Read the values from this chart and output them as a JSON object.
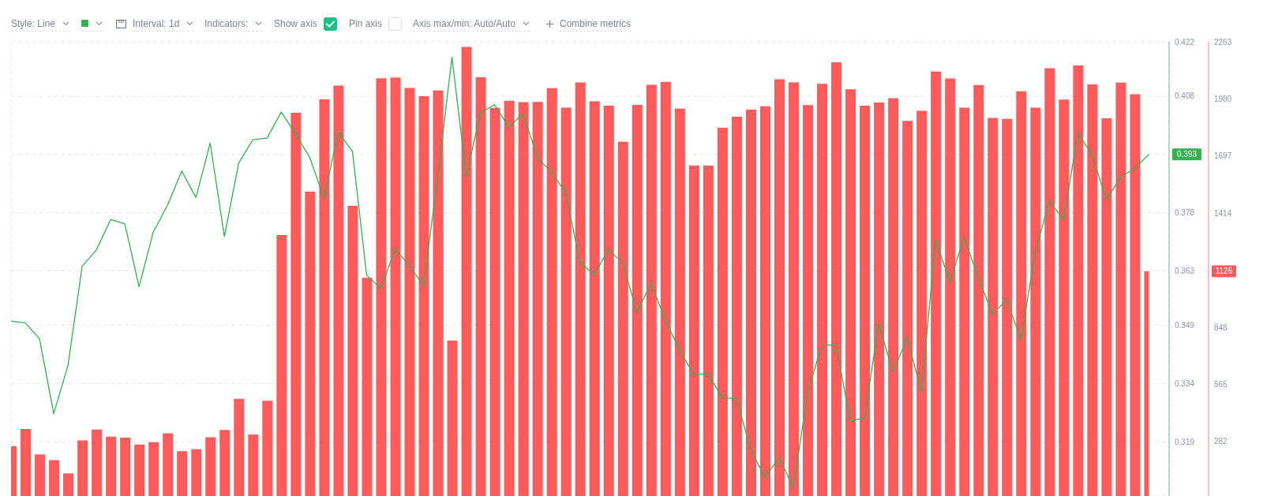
{
  "chart_data": {
    "type": "bar",
    "categories": [
      null,
      null,
      null,
      null,
      null,
      null,
      null,
      null,
      null,
      null,
      null,
      null,
      null,
      null,
      null,
      null,
      null,
      null,
      null,
      null,
      null,
      null,
      null,
      null,
      null,
      null,
      null,
      null,
      null,
      null,
      null,
      null,
      null,
      null,
      null,
      null,
      null,
      null,
      null,
      null,
      null,
      null,
      null,
      null,
      null,
      null,
      null,
      null,
      null,
      null,
      null,
      null,
      null,
      null,
      null,
      null,
      null,
      null,
      null,
      null,
      null,
      null,
      null,
      null,
      null,
      null,
      null,
      null,
      null,
      null,
      null,
      null,
      null,
      null,
      null,
      null,
      null,
      null,
      null,
      null,
      null
    ],
    "series": [
      {
        "axis": "y2",
        "color": "#ff5b5b",
        "values": [
          259,
          344,
          218,
          190,
          124,
          288,
          341,
          306,
          301,
          267,
          279,
          323,
          234,
          244,
          303,
          339,
          494,
          317,
          484,
          1306,
          1911,
          1520,
          1978,
          2046,
          1450,
          1094,
          2082,
          2086,
          2034,
          1993,
          2022,
          783,
          2238,
          2087,
          1936,
          1971,
          1964,
          1965,
          2033,
          1937,
          2062,
          1968,
          1946,
          1768,
          1950,
          2050,
          2065,
          1932,
          1649,
          1649,
          1837,
          1892,
          1927,
          1944,
          2077,
          2062,
          1949,
          2055,
          2161,
          2028,
          1946,
          1962,
          1984,
          1871,
          1921,
          2115,
          2081,
          1937,
          2049,
          1886,
          1881,
          2018,
          1937,
          2132,
          1977,
          2146,
          2052,
          1884,
          2061,
          2003,
          1126
        ]
      },
      {
        "type": "line",
        "color": "#34b150",
        "values": [
          0.35,
          0.3496,
          0.3455,
          0.3262,
          0.3386,
          0.3642,
          0.3684,
          0.3762,
          0.3751,
          0.3589,
          0.373,
          0.3799,
          0.3887,
          0.3819,
          0.3959,
          0.3718,
          0.3907,
          0.3968,
          0.3972,
          0.4039,
          0.3983,
          0.3922,
          0.3817,
          0.3987,
          0.3938,
          0.3619,
          0.3584,
          0.3686,
          0.3644,
          0.3592,
          0.3873,
          0.418,
          0.3874,
          0.4037,
          0.4058,
          0.4,
          0.4035,
          0.3922,
          0.3884,
          0.3831,
          0.3651,
          0.3621,
          0.3684,
          0.3651,
          0.3523,
          0.3598,
          0.3503,
          0.3426,
          0.3363,
          0.3365,
          0.3304,
          0.33,
          0.317,
          0.3098,
          0.3149,
          0.3071,
          0.3316,
          0.3439,
          0.3439,
          0.3243,
          0.3251,
          0.3495,
          0.3369,
          0.3457,
          0.3319,
          0.3709,
          0.3602,
          0.3716,
          0.3613,
          0.3518,
          0.3556,
          0.3453,
          0.3678,
          0.381,
          0.3761,
          0.3985,
          0.393,
          0.3813,
          0.3871,
          0.3894,
          0.393
        ]
      }
    ],
    "ylim": [
      0.305,
      0.422
    ],
    "yticks": [
      0.319,
      0.334,
      0.349,
      0.363,
      0.378,
      0.393,
      0.408,
      0.422
    ],
    "y2lim": [
      12,
      2263
    ],
    "y2ticks": [
      282,
      565,
      848,
      1126,
      1414,
      1697,
      1980,
      2263
    ],
    "grid": true,
    "marker": "none",
    "line_style": "solid",
    "annotations": [
      "Style: Line",
      "Interval: 1d",
      "Indicators:",
      "Show axis",
      "Pin axis",
      "Axis max/min: Auto/Auto",
      "Combine metrics"
    ]
  }
}
